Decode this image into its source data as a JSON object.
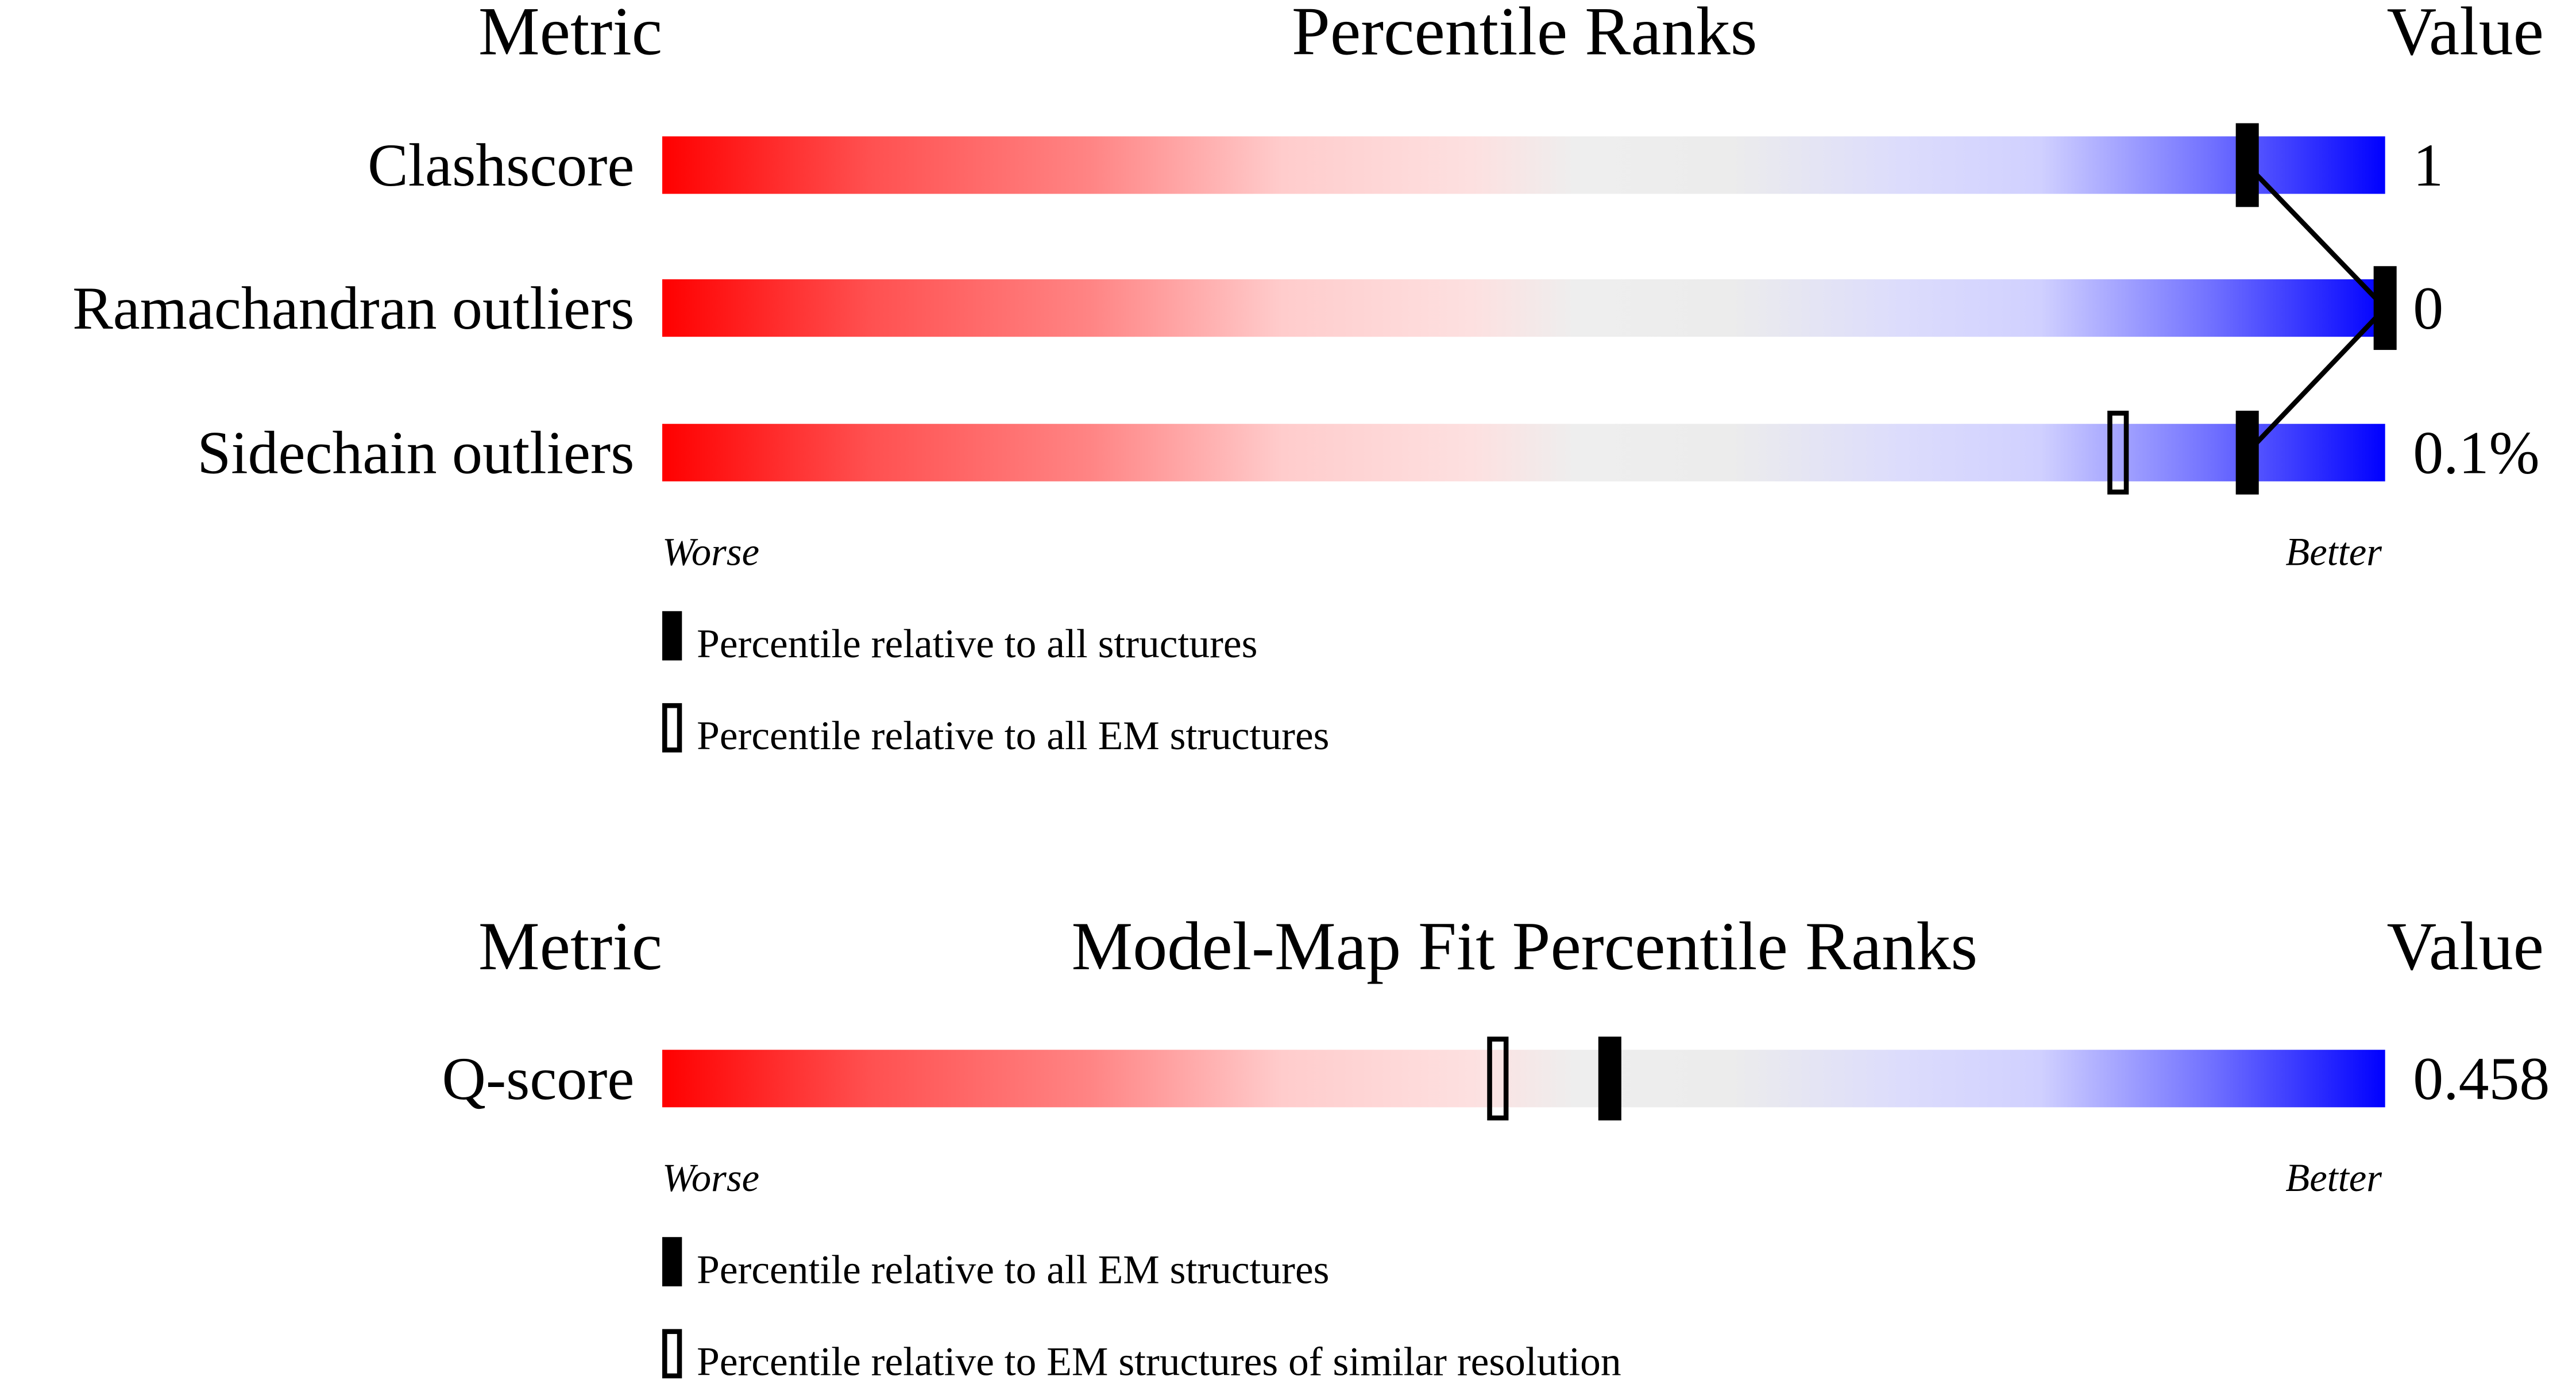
{
  "chart_data": [
    {
      "type": "bar",
      "header": {
        "metric": "Metric",
        "title": "Percentile Ranks",
        "value": "Value"
      },
      "xlim": [
        0,
        100
      ],
      "axis_labels": {
        "left": "Worse",
        "right": "Better"
      },
      "metrics": [
        {
          "name": "Clashscore",
          "value": "1",
          "percentile_all": 92,
          "percentile_em": null
        },
        {
          "name": "Ramachandran outliers",
          "value": "0",
          "percentile_all": 100,
          "percentile_em": null
        },
        {
          "name": "Sidechain outliers",
          "value": "0.1%",
          "percentile_all": 92,
          "percentile_em": 84.5
        }
      ],
      "legend": [
        {
          "marker": "filled",
          "label": "Percentile relative to all structures"
        },
        {
          "marker": "open",
          "label": "Percentile relative to all EM structures"
        }
      ],
      "connect_filled_markers": true
    },
    {
      "type": "bar",
      "header": {
        "metric": "Metric",
        "title": "Model-Map Fit Percentile Ranks",
        "value": "Value"
      },
      "xlim": [
        0,
        100
      ],
      "axis_labels": {
        "left": "Worse",
        "right": "Better"
      },
      "metrics": [
        {
          "name": "Q-score",
          "value": "0.458",
          "percentile_all": 55,
          "percentile_em": 48.5
        }
      ],
      "legend": [
        {
          "marker": "filled",
          "label": "Percentile relative to all EM structures"
        },
        {
          "marker": "open",
          "label": "Percentile relative to EM structures of similar resolution"
        }
      ],
      "connect_filled_markers": false
    }
  ],
  "colors": {
    "worse": "#ff0000",
    "middle": "#eeeeee",
    "better": "#0000ff",
    "marker": "#000000"
  }
}
